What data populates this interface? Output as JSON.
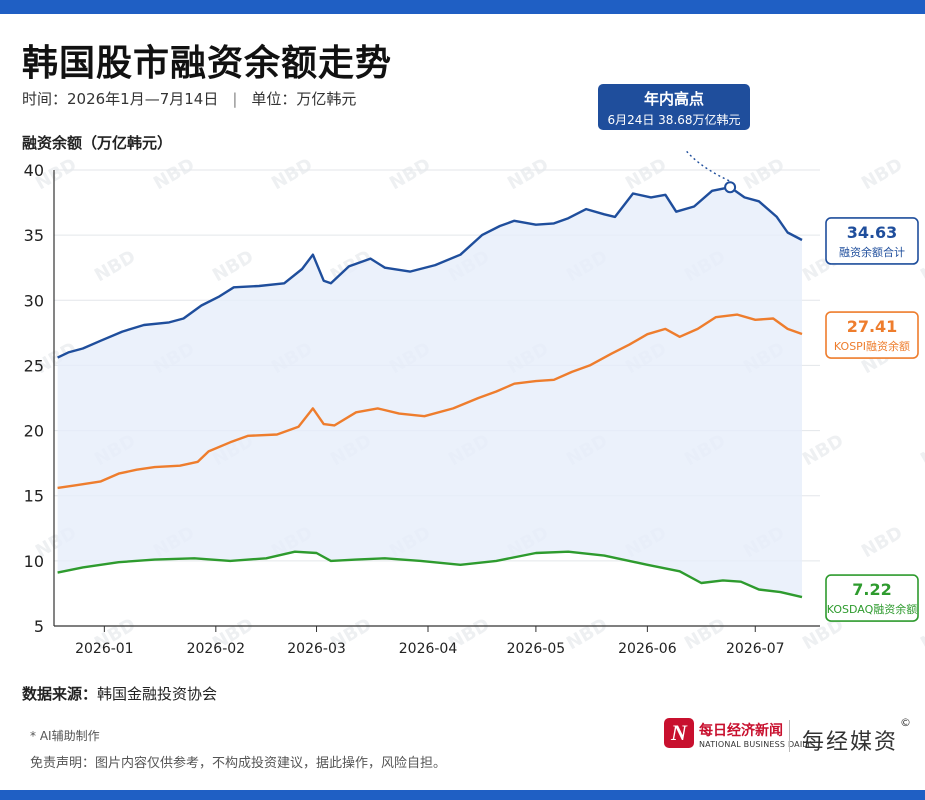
{
  "header": {
    "title": "韩国股市融资余额走势",
    "period": "时间：2026年1月—7月14日",
    "unit": "单位：万亿韩元",
    "separator": "|"
  },
  "chart_data": {
    "type": "line",
    "ylabel": "融资余额（万亿韩元）",
    "ylim": [
      5,
      40
    ],
    "yticks": [
      "5",
      "10",
      "15",
      "20",
      "25",
      "30",
      "35",
      "40"
    ],
    "xticks": [
      "2026-01",
      "2026-02",
      "2026-03",
      "2026-04",
      "2026-05",
      "2026-06",
      "2026-07"
    ],
    "grid": "horizontal",
    "colors": {
      "total": "#1f4e9c",
      "kospi": "#ee7d2d",
      "kosdaq": "#2e9b2e",
      "band": "#e6eefa"
    },
    "series": [
      {
        "key": "total",
        "name": "融资余额合计",
        "end_value": "34.63",
        "points": [
          [
            "2025-12-19",
            25.6
          ],
          [
            "2025-12-22",
            26.0
          ],
          [
            "2025-12-26",
            26.3
          ],
          [
            "2025-12-31",
            26.9
          ],
          [
            "2026-01-06",
            27.6
          ],
          [
            "2026-01-12",
            28.1
          ],
          [
            "2026-01-19",
            28.3
          ],
          [
            "2026-01-23",
            28.6
          ],
          [
            "2026-01-28",
            29.6
          ],
          [
            "2026-02-02",
            30.3
          ],
          [
            "2026-02-06",
            31.0
          ],
          [
            "2026-02-13",
            31.1
          ],
          [
            "2026-02-20",
            31.3
          ],
          [
            "2026-02-25",
            32.4
          ],
          [
            "2026-02-28",
            33.5
          ],
          [
            "2026-03-03",
            31.5
          ],
          [
            "2026-03-05",
            31.3
          ],
          [
            "2026-03-10",
            32.6
          ],
          [
            "2026-03-16",
            33.2
          ],
          [
            "2026-03-20",
            32.5
          ],
          [
            "2026-03-27",
            32.2
          ],
          [
            "2026-04-03",
            32.7
          ],
          [
            "2026-04-10",
            33.5
          ],
          [
            "2026-04-16",
            35.0
          ],
          [
            "2026-04-21",
            35.7
          ],
          [
            "2026-04-25",
            36.1
          ],
          [
            "2026-05-01",
            35.8
          ],
          [
            "2026-05-06",
            35.9
          ],
          [
            "2026-05-10",
            36.3
          ],
          [
            "2026-05-15",
            37.0
          ],
          [
            "2026-05-20",
            36.6
          ],
          [
            "2026-05-23",
            36.4
          ],
          [
            "2026-05-28",
            38.2
          ],
          [
            "2026-06-02",
            37.9
          ],
          [
            "2026-06-06",
            38.1
          ],
          [
            "2026-06-09",
            36.8
          ],
          [
            "2026-06-14",
            37.2
          ],
          [
            "2026-06-19",
            38.4
          ],
          [
            "2026-06-24",
            38.68
          ],
          [
            "2026-06-28",
            37.9
          ],
          [
            "2026-07-02",
            37.6
          ],
          [
            "2026-07-07",
            36.4
          ],
          [
            "2026-07-10",
            35.2
          ],
          [
            "2026-07-14",
            34.63
          ]
        ]
      },
      {
        "key": "kospi",
        "name": "KOSPI融资余额",
        "end_value": "27.41",
        "points": [
          [
            "2025-12-19",
            15.6
          ],
          [
            "2025-12-24",
            15.8
          ],
          [
            "2025-12-31",
            16.1
          ],
          [
            "2026-01-05",
            16.7
          ],
          [
            "2026-01-10",
            17.0
          ],
          [
            "2026-01-15",
            17.2
          ],
          [
            "2026-01-22",
            17.3
          ],
          [
            "2026-01-27",
            17.6
          ],
          [
            "2026-01-30",
            18.4
          ],
          [
            "2026-02-05",
            19.1
          ],
          [
            "2026-02-10",
            19.6
          ],
          [
            "2026-02-18",
            19.7
          ],
          [
            "2026-02-24",
            20.3
          ],
          [
            "2026-02-28",
            21.7
          ],
          [
            "2026-03-03",
            20.5
          ],
          [
            "2026-03-06",
            20.4
          ],
          [
            "2026-03-12",
            21.4
          ],
          [
            "2026-03-18",
            21.7
          ],
          [
            "2026-03-24",
            21.3
          ],
          [
            "2026-03-31",
            21.1
          ],
          [
            "2026-04-08",
            21.7
          ],
          [
            "2026-04-15",
            22.5
          ],
          [
            "2026-04-20",
            23.0
          ],
          [
            "2026-04-25",
            23.6
          ],
          [
            "2026-05-01",
            23.8
          ],
          [
            "2026-05-06",
            23.9
          ],
          [
            "2026-05-11",
            24.5
          ],
          [
            "2026-05-16",
            25.0
          ],
          [
            "2026-05-22",
            25.9
          ],
          [
            "2026-05-27",
            26.6
          ],
          [
            "2026-06-01",
            27.4
          ],
          [
            "2026-06-06",
            27.8
          ],
          [
            "2026-06-10",
            27.2
          ],
          [
            "2026-06-15",
            27.8
          ],
          [
            "2026-06-20",
            28.7
          ],
          [
            "2026-06-26",
            28.9
          ],
          [
            "2026-07-01",
            28.5
          ],
          [
            "2026-07-06",
            28.6
          ],
          [
            "2026-07-10",
            27.8
          ],
          [
            "2026-07-14",
            27.41
          ]
        ]
      },
      {
        "key": "kosdaq",
        "name": "KOSDAQ融资余额",
        "end_value": "7.22",
        "points": [
          [
            "2025-12-19",
            9.1
          ],
          [
            "2025-12-26",
            9.5
          ],
          [
            "2026-01-05",
            9.9
          ],
          [
            "2026-01-15",
            10.1
          ],
          [
            "2026-01-26",
            10.2
          ],
          [
            "2026-02-05",
            10.0
          ],
          [
            "2026-02-15",
            10.2
          ],
          [
            "2026-02-23",
            10.7
          ],
          [
            "2026-03-01",
            10.6
          ],
          [
            "2026-03-05",
            10.0
          ],
          [
            "2026-03-12",
            10.1
          ],
          [
            "2026-03-20",
            10.2
          ],
          [
            "2026-03-30",
            10.0
          ],
          [
            "2026-04-10",
            9.7
          ],
          [
            "2026-04-20",
            10.0
          ],
          [
            "2026-05-01",
            10.6
          ],
          [
            "2026-05-10",
            10.7
          ],
          [
            "2026-05-20",
            10.4
          ],
          [
            "2026-06-01",
            9.7
          ],
          [
            "2026-06-10",
            9.2
          ],
          [
            "2026-06-16",
            8.3
          ],
          [
            "2026-06-22",
            8.5
          ],
          [
            "2026-06-27",
            8.4
          ],
          [
            "2026-07-02",
            7.8
          ],
          [
            "2026-07-08",
            7.6
          ],
          [
            "2026-07-14",
            7.22
          ]
        ]
      }
    ],
    "annotation": {
      "title": "年内高点",
      "text": "6月24日 38.68万亿韩元",
      "x": "2026-06-24",
      "y": 38.68
    }
  },
  "footer": {
    "source_label": "数据来源：",
    "source_value": "韩国金融投资协会",
    "ai_note": "AI辅助制作",
    "disclaimer": "免责声明：图片内容仅供参考，不构成投资建议，据此操作，风险自担。"
  },
  "brand": {
    "logo_letter": "N",
    "name_cn": "每日经济新闻",
    "name_en": "NATIONAL BUSINESS DAILY",
    "media": "每经媒资",
    "copyright": "©",
    "watermark": "NBD"
  }
}
